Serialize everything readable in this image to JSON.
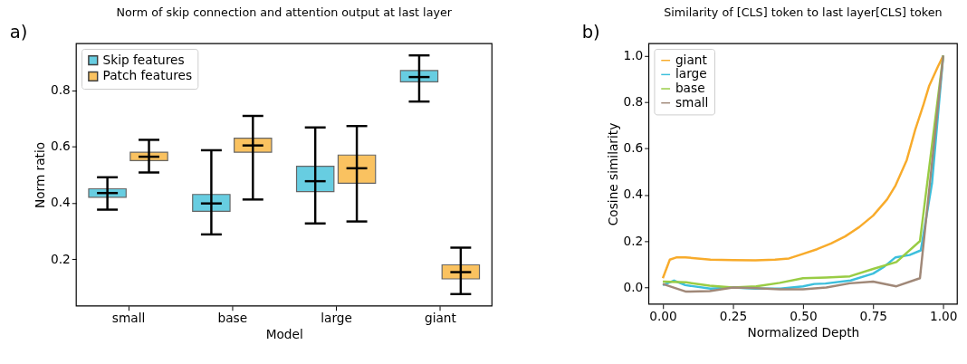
{
  "chart_data": [
    {
      "type": "box",
      "title": "Norm of skip connection and attention output at last layer",
      "xlabel": "Model",
      "ylabel": "Norm ratio",
      "categories": [
        "small",
        "base",
        "large",
        "giant"
      ],
      "series": [
        {
          "name": "Skip features",
          "color": "#35bdd8",
          "boxes": [
            {
              "low": 0.376,
              "q1": 0.42,
              "median": 0.435,
              "q3": 0.45,
              "high": 0.491
            },
            {
              "low": 0.288,
              "q1": 0.37,
              "median": 0.398,
              "q3": 0.43,
              "high": 0.587
            },
            {
              "low": 0.327,
              "q1": 0.44,
              "median": 0.477,
              "q3": 0.53,
              "high": 0.668
            },
            {
              "low": 0.76,
              "q1": 0.83,
              "median": 0.847,
              "q3": 0.87,
              "high": 0.924
            }
          ]
        },
        {
          "name": "Patch features",
          "color": "#f9ae2c",
          "boxes": [
            {
              "low": 0.508,
              "q1": 0.55,
              "median": 0.564,
              "q3": 0.58,
              "high": 0.624
            },
            {
              "low": 0.412,
              "q1": 0.58,
              "median": 0.604,
              "q3": 0.63,
              "high": 0.709
            },
            {
              "low": 0.334,
              "q1": 0.47,
              "median": 0.523,
              "q3": 0.57,
              "high": 0.673
            },
            {
              "low": 0.076,
              "q1": 0.13,
              "median": 0.154,
              "q3": 0.18,
              "high": 0.241
            }
          ]
        }
      ],
      "ylim": [
        0.034,
        0.966
      ],
      "yticks": [
        0.2,
        0.4,
        0.6,
        0.8
      ],
      "legend": "top left",
      "grid": false,
      "annotations": [
        "a)"
      ]
    },
    {
      "type": "line",
      "title": "Similarity of [CLS] token to last layer[CLS] token",
      "xlabel": "Normalized Depth",
      "ylabel": "Cosine similarity",
      "series": [
        {
          "name": "giant",
          "color": "#f8ab2b",
          "x": [
            0,
            0.025,
            0.05,
            0.08,
            0.17,
            0.25,
            0.33,
            0.4,
            0.45,
            0.5,
            0.55,
            0.6,
            0.65,
            0.7,
            0.75,
            0.8,
            0.83,
            0.87,
            0.9,
            0.93,
            0.95,
            0.98,
            1.0
          ],
          "values": [
            0.04,
            0.12,
            0.13,
            0.13,
            0.12,
            0.118,
            0.117,
            0.12,
            0.125,
            0.145,
            0.165,
            0.19,
            0.22,
            0.26,
            0.31,
            0.38,
            0.44,
            0.55,
            0.68,
            0.79,
            0.87,
            0.95,
            1.0
          ]
        },
        {
          "name": "large",
          "color": "#3cbfdc",
          "x": [
            0,
            0.04,
            0.08,
            0.17,
            0.25,
            0.33,
            0.42,
            0.5,
            0.54,
            0.58,
            0.67,
            0.75,
            0.79,
            0.83,
            0.88,
            0.92,
            0.96,
            1.0
          ],
          "values": [
            0.01,
            0.03,
            0.01,
            -0.005,
            0,
            -0.005,
            -0.005,
            0.005,
            0.015,
            0.017,
            0.03,
            0.06,
            0.09,
            0.13,
            0.14,
            0.16,
            0.45,
            1.0
          ]
        },
        {
          "name": "base",
          "color": "#99cc44",
          "x": [
            0,
            0.083,
            0.167,
            0.25,
            0.333,
            0.417,
            0.5,
            0.583,
            0.667,
            0.75,
            0.833,
            0.917,
            1.0
          ],
          "values": [
            0.025,
            0.022,
            0.008,
            0,
            0.005,
            0.02,
            0.04,
            0.043,
            0.048,
            0.08,
            0.11,
            0.2,
            1.0
          ]
        },
        {
          "name": "small",
          "color": "#a08878",
          "x": [
            0,
            0.083,
            0.167,
            0.25,
            0.333,
            0.417,
            0.5,
            0.583,
            0.667,
            0.75,
            0.833,
            0.917,
            1.0
          ],
          "values": [
            0.015,
            -0.018,
            -0.016,
            0,
            -0.003,
            -0.008,
            -0.008,
            0,
            0.018,
            0.025,
            0.005,
            0.04,
            1.0
          ]
        }
      ],
      "xlim": [
        -0.05,
        1.05
      ],
      "xticks": [
        {
          "value": 0,
          "label": "0.00"
        },
        {
          "value": 0.25,
          "label": "0.25"
        },
        {
          "value": 0.5,
          "label": "0.50"
        },
        {
          "value": 0.75,
          "label": "0.75"
        },
        {
          "value": 1.0,
          "label": "1.00"
        }
      ],
      "ylim": [
        -0.072,
        1.052
      ],
      "yticks": [
        {
          "value": 0,
          "label": "0.0"
        },
        0.2,
        0.4,
        0.6,
        0.8,
        {
          "value": 1.0,
          "label": "1.0"
        }
      ],
      "legend": "top left",
      "grid": false,
      "annotations": [
        "b)"
      ]
    }
  ]
}
